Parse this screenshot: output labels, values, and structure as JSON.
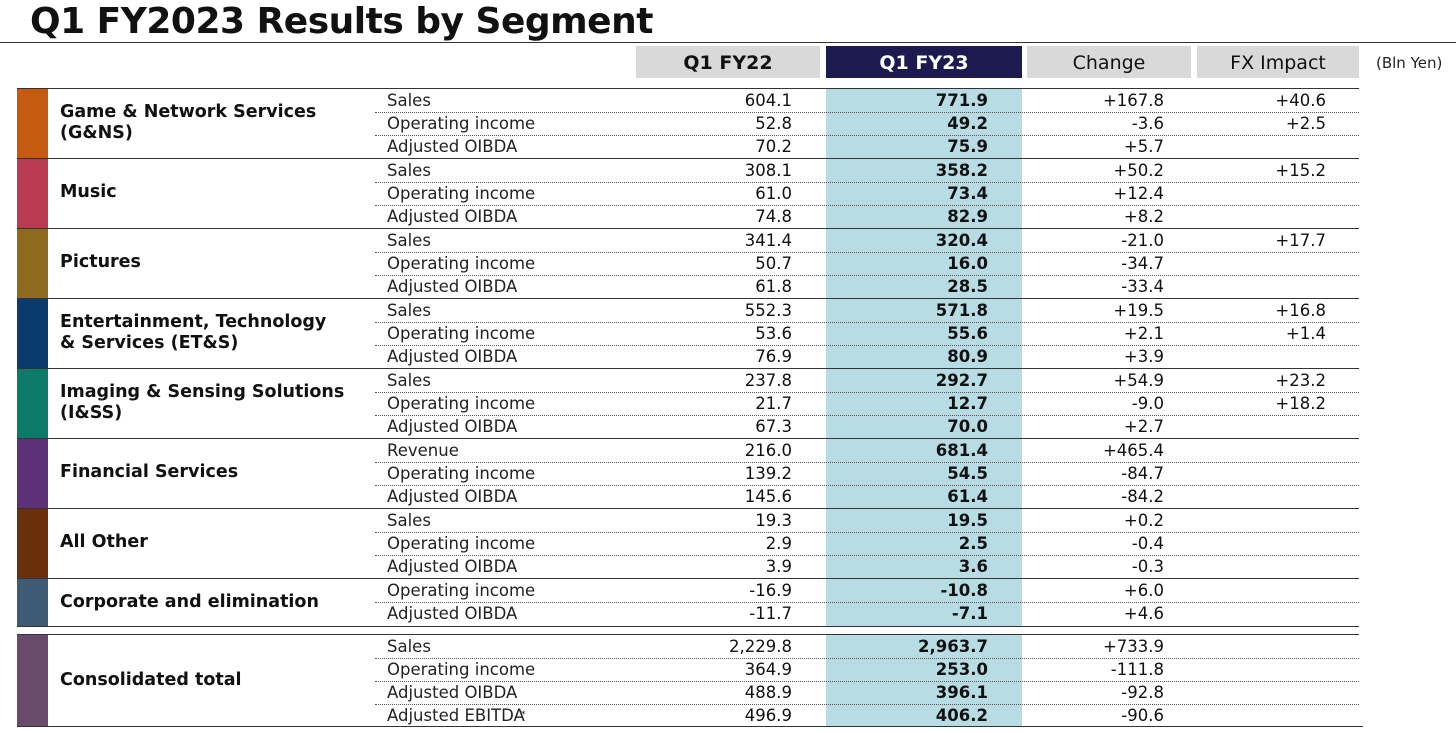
{
  "title": "Q1 FY2023 Results by Segment",
  "columns": [
    "Q1 FY22",
    "Q1 FY23",
    "Change",
    "FX Impact"
  ],
  "unit": "(Bln Yen)",
  "segments": [
    {
      "name": "Game & Network Services (G&NS)",
      "color": "#c55a11",
      "rows": [
        {
          "metric": "Sales",
          "q1_fy22": "604.1",
          "q1_fy23": "771.9",
          "change": "+167.8",
          "fx": "+40.6"
        },
        {
          "metric": "Operating income",
          "q1_fy22": "52.8",
          "q1_fy23": "49.2",
          "change": "-3.6",
          "fx": "+2.5"
        },
        {
          "metric": "Adjusted OIBDA",
          "q1_fy22": "70.2",
          "q1_fy23": "75.9",
          "change": "+5.7",
          "fx": ""
        }
      ]
    },
    {
      "name": "Music",
      "color": "#b83b52",
      "rows": [
        {
          "metric": "Sales",
          "q1_fy22": "308.1",
          "q1_fy23": "358.2",
          "change": "+50.2",
          "fx": "+15.2"
        },
        {
          "metric": "Operating income",
          "q1_fy22": "61.0",
          "q1_fy23": "73.4",
          "change": "+12.4",
          "fx": ""
        },
        {
          "metric": "Adjusted OIBDA",
          "q1_fy22": "74.8",
          "q1_fy23": "82.9",
          "change": "+8.2",
          "fx": ""
        }
      ]
    },
    {
      "name": "Pictures",
      "color": "#8f6a1e",
      "rows": [
        {
          "metric": "Sales",
          "q1_fy22": "341.4",
          "q1_fy23": "320.4",
          "change": "-21.0",
          "fx": "+17.7"
        },
        {
          "metric": "Operating income",
          "q1_fy22": "50.7",
          "q1_fy23": "16.0",
          "change": "-34.7",
          "fx": ""
        },
        {
          "metric": "Adjusted OIBDA",
          "q1_fy22": "61.8",
          "q1_fy23": "28.5",
          "change": "-33.4",
          "fx": ""
        }
      ]
    },
    {
      "name": "Entertainment, Technology & Services (ET&S)",
      "color": "#0d3a6e",
      "rows": [
        {
          "metric": "Sales",
          "q1_fy22": "552.3",
          "q1_fy23": "571.8",
          "change": "+19.5",
          "fx": "+16.8"
        },
        {
          "metric": "Operating income",
          "q1_fy22": "53.6",
          "q1_fy23": "55.6",
          "change": "+2.1",
          "fx": "+1.4"
        },
        {
          "metric": "Adjusted OIBDA",
          "q1_fy22": "76.9",
          "q1_fy23": "80.9",
          "change": "+3.9",
          "fx": ""
        }
      ]
    },
    {
      "name": "Imaging & Sensing Solutions (I&SS)",
      "color": "#0b7a68",
      "rows": [
        {
          "metric": "Sales",
          "q1_fy22": "237.8",
          "q1_fy23": "292.7",
          "change": "+54.9",
          "fx": "+23.2"
        },
        {
          "metric": "Operating income",
          "q1_fy22": "21.7",
          "q1_fy23": "12.7",
          "change": "-9.0",
          "fx": "+18.2"
        },
        {
          "metric": "Adjusted OIBDA",
          "q1_fy22": "67.3",
          "q1_fy23": "70.0",
          "change": "+2.7",
          "fx": ""
        }
      ]
    },
    {
      "name": "Financial Services",
      "color": "#5e3075",
      "rows": [
        {
          "metric": "Revenue",
          "q1_fy22": "216.0",
          "q1_fy23": "681.4",
          "change": "+465.4",
          "fx": ""
        },
        {
          "metric": "Operating income",
          "q1_fy22": "139.2",
          "q1_fy23": "54.5",
          "change": "-84.7",
          "fx": ""
        },
        {
          "metric": "Adjusted OIBDA",
          "q1_fy22": "145.6",
          "q1_fy23": "61.4",
          "change": "-84.2",
          "fx": ""
        }
      ]
    },
    {
      "name": "All Other",
      "color": "#6a300c",
      "rows": [
        {
          "metric": "Sales",
          "q1_fy22": "19.3",
          "q1_fy23": "19.5",
          "change": "+0.2",
          "fx": ""
        },
        {
          "metric": "Operating income",
          "q1_fy22": "2.9",
          "q1_fy23": "2.5",
          "change": "-0.4",
          "fx": ""
        },
        {
          "metric": "Adjusted OIBDA",
          "q1_fy22": "3.9",
          "q1_fy23": "3.6",
          "change": "-0.3",
          "fx": ""
        }
      ]
    },
    {
      "name": "Corporate and elimination",
      "color": "#3f5a74",
      "rows": [
        {
          "metric": "Operating income",
          "q1_fy22": "-16.9",
          "q1_fy23": "-10.8",
          "change": "+6.0",
          "fx": ""
        },
        {
          "metric": "Adjusted OIBDA",
          "q1_fy22": "-11.7",
          "q1_fy23": "-7.1",
          "change": "+4.6",
          "fx": ""
        }
      ]
    },
    {
      "name": "Consolidated total",
      "color": "#6a4a6b",
      "rows": [
        {
          "metric": "Sales",
          "q1_fy22": "2,229.8",
          "q1_fy23": "2,963.7",
          "change": "+733.9",
          "fx": ""
        },
        {
          "metric": "Operating income",
          "q1_fy22": "364.9",
          "q1_fy23": "253.0",
          "change": "-111.8",
          "fx": ""
        },
        {
          "metric": "Adjusted OIBDA",
          "q1_fy22": "488.9",
          "q1_fy23": "396.1",
          "change": "-92.8",
          "fx": ""
        },
        {
          "metric": "Adjusted EBITDA",
          "marker": "*",
          "q1_fy22": "496.9",
          "q1_fy23": "406.2",
          "change": "-90.6",
          "fx": ""
        }
      ]
    }
  ]
}
